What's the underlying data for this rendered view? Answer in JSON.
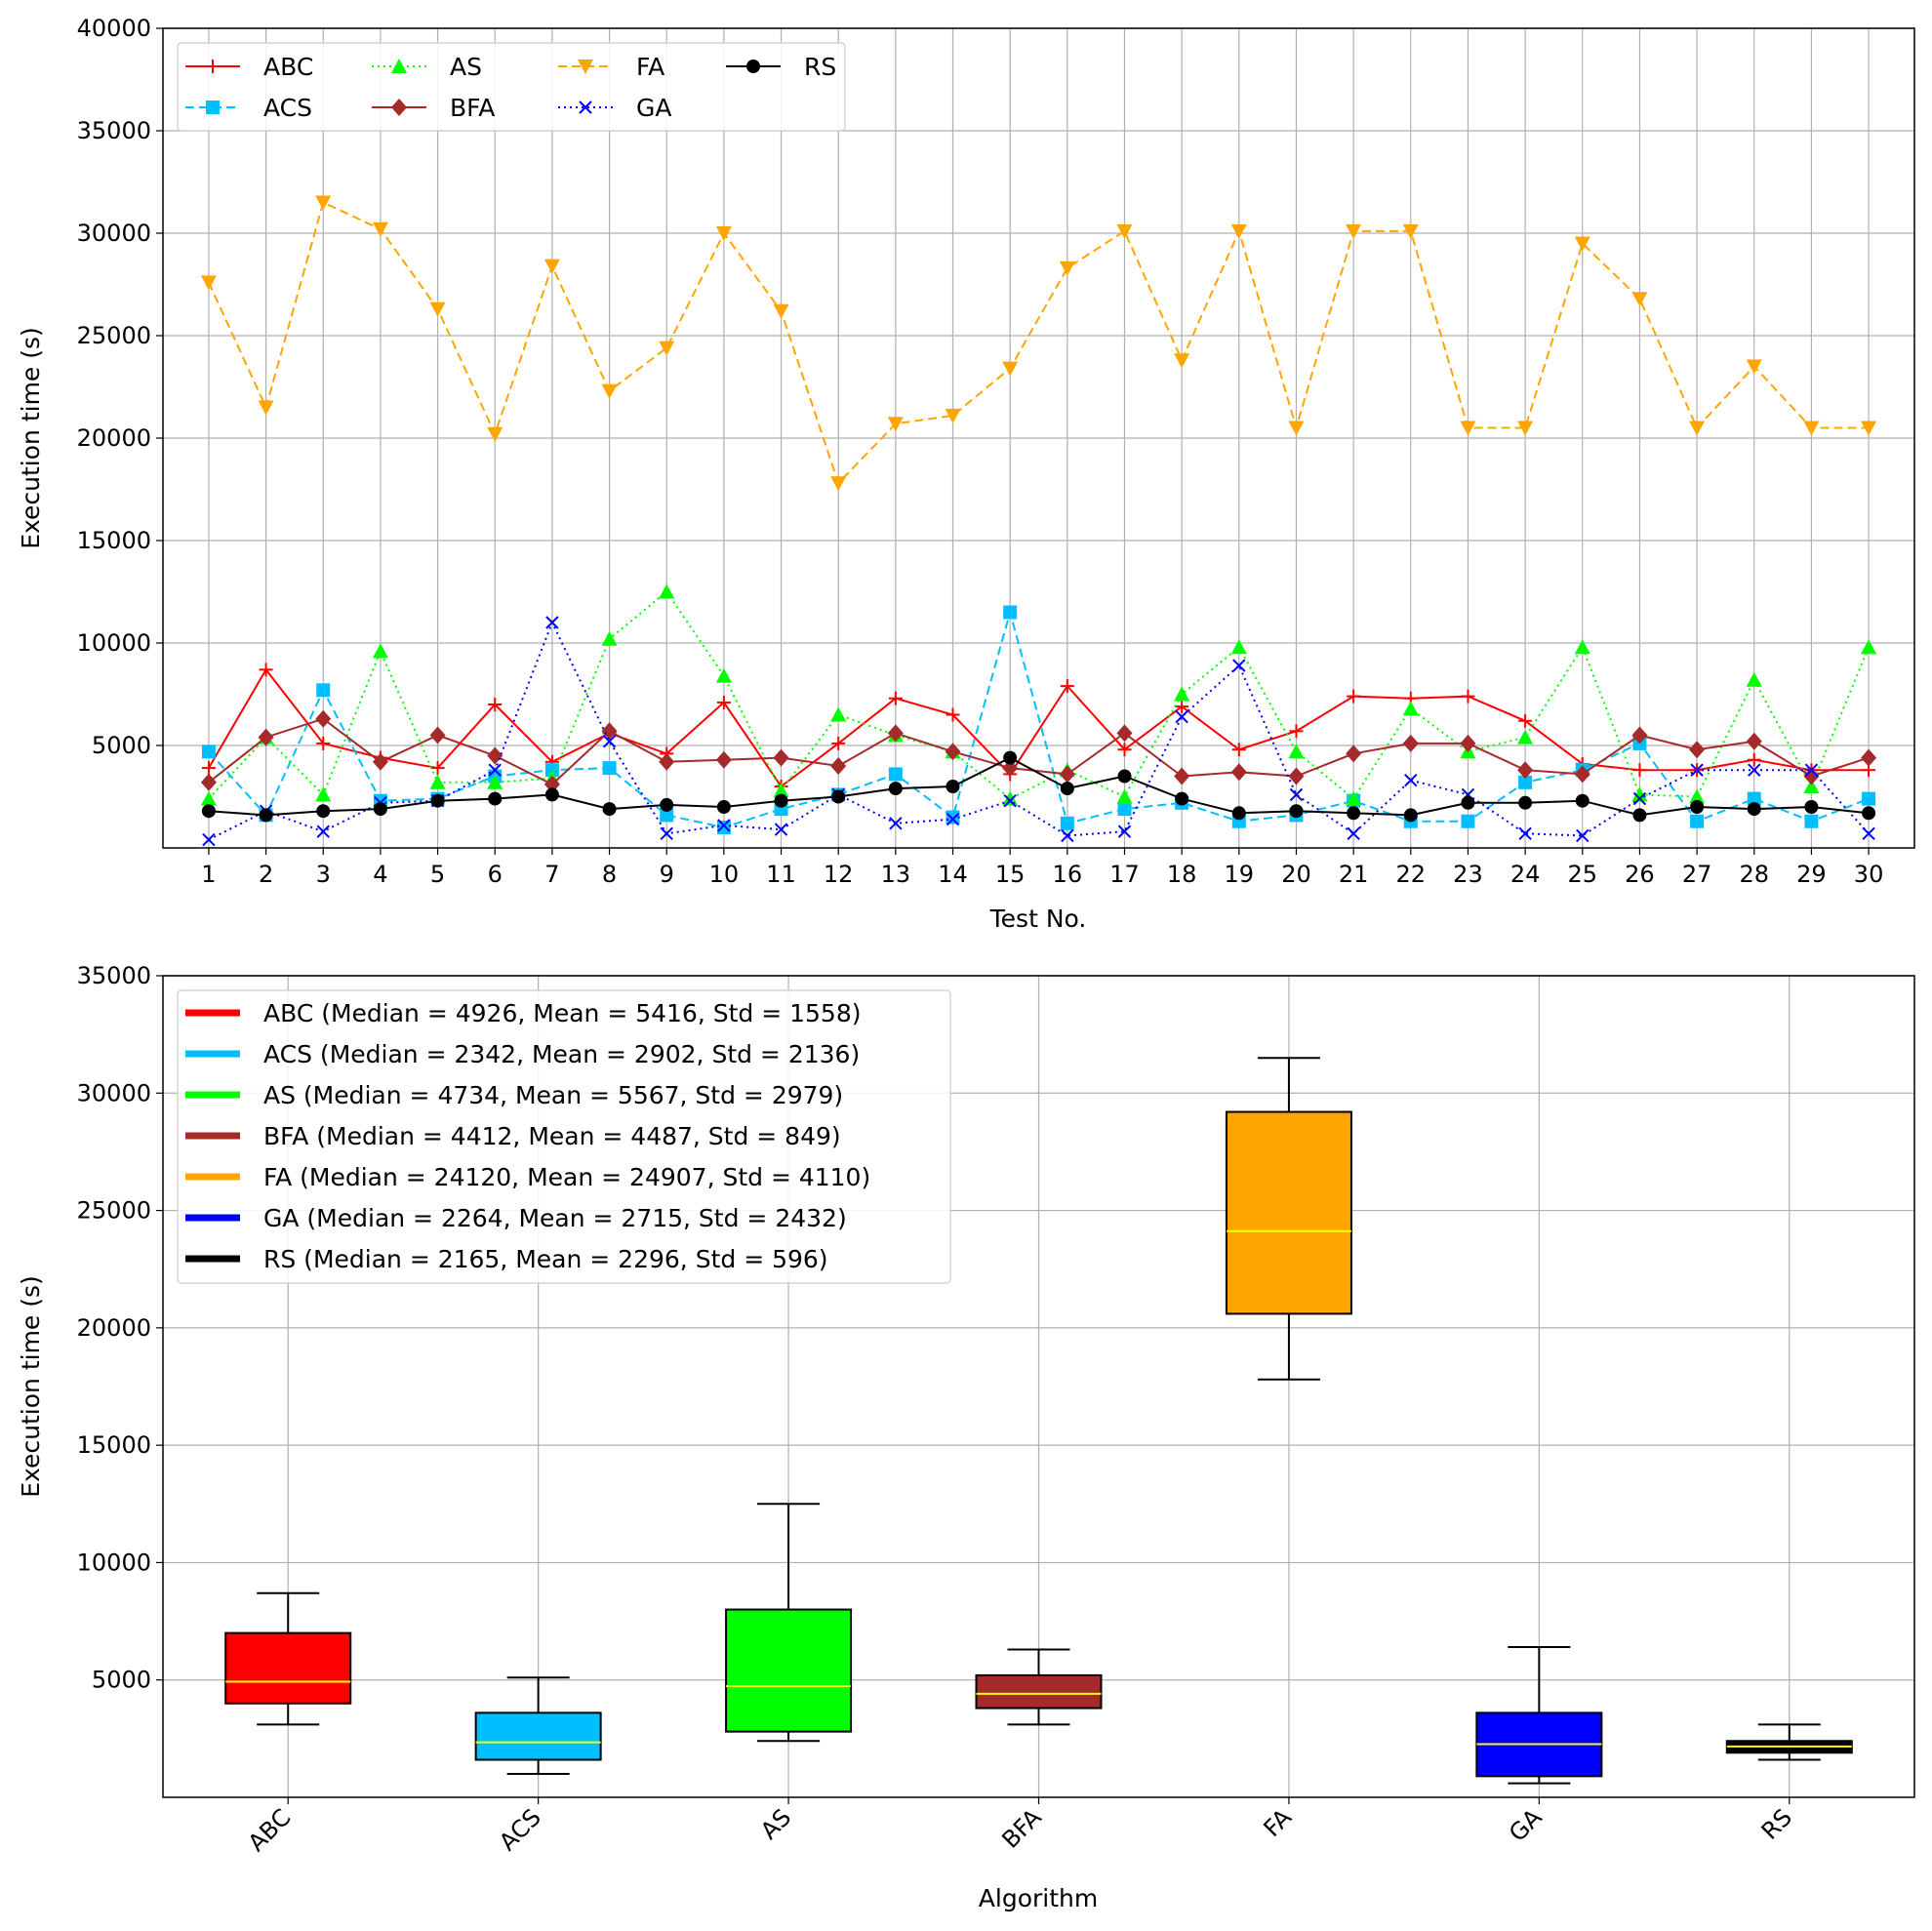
{
  "chart_data": [
    {
      "type": "line",
      "xlabel": "Test No.",
      "ylabel": "Execution time (s)",
      "xlim": [
        0.2,
        30.8
      ],
      "ylim": [
        0,
        40000
      ],
      "y_ticks": [
        5000,
        10000,
        15000,
        20000,
        25000,
        30000,
        35000,
        40000
      ],
      "x": [
        1,
        2,
        3,
        4,
        5,
        6,
        7,
        8,
        9,
        10,
        11,
        12,
        13,
        14,
        15,
        16,
        17,
        18,
        19,
        20,
        21,
        22,
        23,
        24,
        25,
        26,
        27,
        28,
        29,
        30
      ],
      "grid": true,
      "legend_position": "top-left",
      "series": [
        {
          "name": "ABC",
          "color": "#ff0000",
          "dash": "solid",
          "marker": "plus",
          "values": [
            3900,
            8700,
            5100,
            4400,
            3900,
            7000,
            4200,
            5600,
            4600,
            7100,
            3000,
            5100,
            7300,
            6500,
            3600,
            7900,
            4800,
            6900,
            4800,
            5700,
            7400,
            7300,
            7400,
            6200,
            4100,
            3800,
            3800,
            4300,
            3800,
            3800
          ]
        },
        {
          "name": "ACS",
          "color": "#00bfff",
          "dash": "dashed",
          "marker": "square",
          "values": [
            4700,
            1600,
            7700,
            2300,
            2400,
            3500,
            3800,
            3900,
            1600,
            1000,
            1900,
            2600,
            3600,
            1500,
            11500,
            1200,
            1900,
            2200,
            1300,
            1600,
            2300,
            1300,
            1300,
            3200,
            3800,
            5100,
            1300,
            2400,
            1300,
            2400
          ]
        },
        {
          "name": "AS",
          "color": "#00ff00",
          "dash": "dotted",
          "marker": "triangle-up",
          "values": [
            2400,
            5400,
            2600,
            9600,
            3200,
            3200,
            3400,
            10200,
            12500,
            8400,
            2800,
            6500,
            5500,
            4700,
            2400,
            3800,
            2500,
            7500,
            9800,
            4700,
            2400,
            6800,
            4700,
            5400,
            9800,
            2600,
            2500,
            8200,
            3000,
            9800
          ]
        },
        {
          "name": "BFA",
          "color": "#a52a2a",
          "dash": "solid",
          "marker": "diamond",
          "values": [
            3200,
            5400,
            6300,
            4200,
            5500,
            4500,
            3100,
            5700,
            4200,
            4300,
            4400,
            4000,
            5600,
            4700,
            3900,
            3600,
            5600,
            3500,
            3700,
            3500,
            4600,
            5100,
            5100,
            3800,
            3600,
            5500,
            4800,
            5200,
            3500,
            4400
          ]
        },
        {
          "name": "FA",
          "color": "#ffa500",
          "dash": "dashed",
          "marker": "triangle-down",
          "values": [
            27600,
            21500,
            31500,
            30200,
            26300,
            20200,
            28400,
            22300,
            24400,
            30000,
            26200,
            17800,
            20700,
            21100,
            23400,
            28300,
            30100,
            23800,
            30100,
            20500,
            30100,
            30100,
            20500,
            20500,
            29500,
            26800,
            20500,
            23500,
            20500,
            20500
          ]
        },
        {
          "name": "GA",
          "color": "#0000ff",
          "dash": "dotted",
          "marker": "x",
          "values": [
            400,
            1800,
            800,
            2200,
            2300,
            3800,
            11000,
            5200,
            700,
            1100,
            900,
            2600,
            1200,
            1400,
            2300,
            600,
            800,
            6400,
            8900,
            2600,
            700,
            3300,
            2600,
            700,
            600,
            2400,
            3800,
            3800,
            3800,
            700
          ]
        },
        {
          "name": "RS",
          "color": "#000000",
          "dash": "solid",
          "marker": "circle",
          "values": [
            1800,
            1600,
            1800,
            1900,
            2300,
            2400,
            2600,
            1900,
            2100,
            2000,
            2300,
            2500,
            2900,
            3000,
            4400,
            2900,
            3500,
            2400,
            1700,
            1800,
            1700,
            1600,
            2200,
            2200,
            2300,
            1600,
            2000,
            1900,
            2000,
            1700
          ]
        }
      ]
    },
    {
      "type": "box",
      "xlabel": "Algorithm",
      "ylabel": "Execution time (s)",
      "ylim": [
        0,
        35000
      ],
      "y_ticks": [
        5000,
        10000,
        15000,
        20000,
        25000,
        30000,
        35000
      ],
      "categories": [
        "ABC",
        "ACS",
        "AS",
        "BFA",
        "FA",
        "GA",
        "RS"
      ],
      "grid": true,
      "legend_position": "top-left",
      "median_color": "#ffff00",
      "boxes": [
        {
          "name": "ABC",
          "color": "#ff0000",
          "whisker_low": 3100,
          "q1": 4000,
          "median": 4926,
          "q3": 7000,
          "whisker_high": 8700
        },
        {
          "name": "ACS",
          "color": "#00bfff",
          "whisker_low": 1000,
          "q1": 1600,
          "median": 2342,
          "q3": 3600,
          "whisker_high": 5100
        },
        {
          "name": "AS",
          "color": "#00ff00",
          "whisker_low": 2400,
          "q1": 2800,
          "median": 4734,
          "q3": 8000,
          "whisker_high": 12500
        },
        {
          "name": "BFA",
          "color": "#a52a2a",
          "whisker_low": 3100,
          "q1": 3800,
          "median": 4412,
          "q3": 5200,
          "whisker_high": 6300
        },
        {
          "name": "FA",
          "color": "#ffa500",
          "whisker_low": 17800,
          "q1": 20600,
          "median": 24120,
          "q3": 29200,
          "whisker_high": 31500
        },
        {
          "name": "GA",
          "color": "#0000ff",
          "whisker_low": 600,
          "q1": 900,
          "median": 2264,
          "q3": 3600,
          "whisker_high": 6400
        },
        {
          "name": "RS",
          "color": "#000000",
          "whisker_low": 1600,
          "q1": 1900,
          "median": 2165,
          "q3": 2400,
          "whisker_high": 3100
        }
      ],
      "legend": [
        {
          "label": "ABC (Median = 4926, Mean = 5416, Std = 1558)",
          "color": "#ff0000"
        },
        {
          "label": "ACS (Median = 2342, Mean = 2902, Std = 2136)",
          "color": "#00bfff"
        },
        {
          "label": "AS (Median = 4734, Mean = 5567, Std = 2979)",
          "color": "#00ff00"
        },
        {
          "label": "BFA (Median = 4412, Mean = 4487, Std = 849)",
          "color": "#a52a2a"
        },
        {
          "label": "FA (Median = 24120, Mean = 24907, Std = 4110)",
          "color": "#ffa500"
        },
        {
          "label": "GA (Median = 2264, Mean = 2715, Std = 2432)",
          "color": "#0000ff"
        },
        {
          "label": "RS (Median = 2165, Mean = 2296, Std = 596)",
          "color": "#000000"
        }
      ]
    }
  ]
}
